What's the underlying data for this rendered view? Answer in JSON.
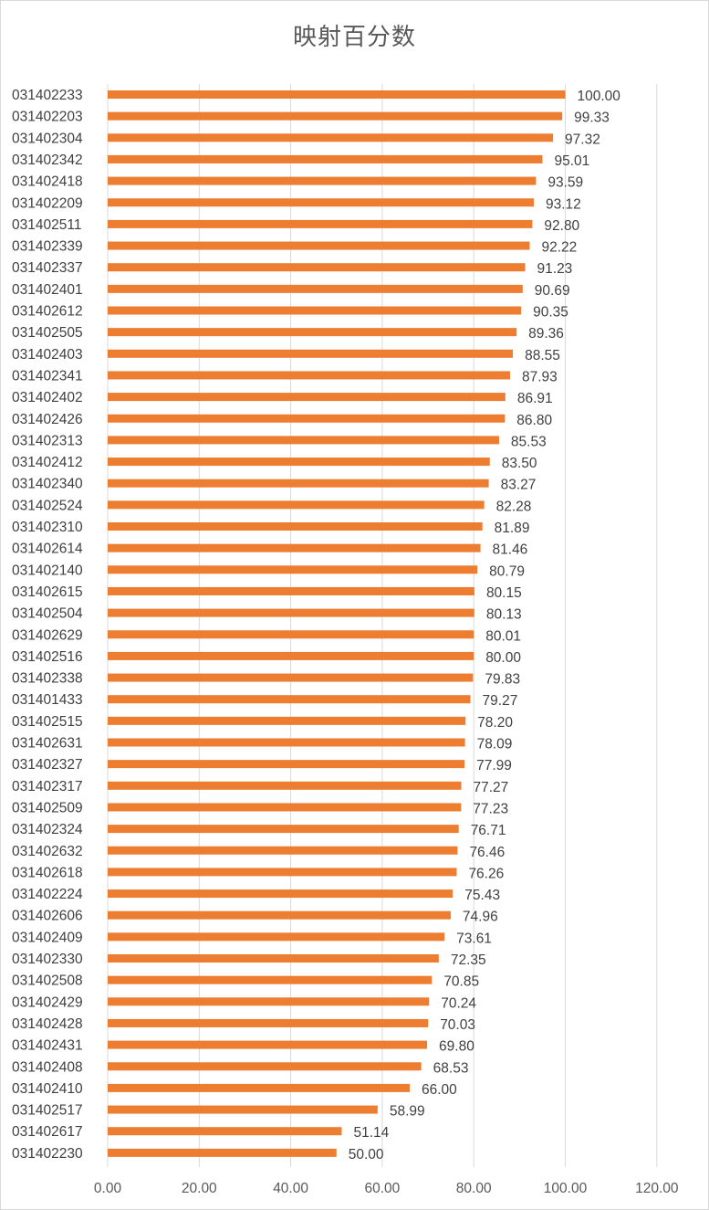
{
  "chart_data": {
    "type": "bar",
    "orientation": "horizontal",
    "title": "映射百分数",
    "xlabel": "",
    "ylabel": "",
    "xlim": [
      0,
      120
    ],
    "x_ticks": [
      "0.00",
      "20.00",
      "40.00",
      "60.00",
      "80.00",
      "100.00",
      "120.00"
    ],
    "grid": "vertical",
    "bar_color": "#ED7D31",
    "categories": [
      "031402233",
      "031402203",
      "031402304",
      "031402342",
      "031402418",
      "031402209",
      "031402511",
      "031402339",
      "031402337",
      "031402401",
      "031402612",
      "031402505",
      "031402403",
      "031402341",
      "031402402",
      "031402426",
      "031402313",
      "031402412",
      "031402340",
      "031402524",
      "031402310",
      "031402614",
      "031402140",
      "031402615",
      "031402504",
      "031402629",
      "031402516",
      "031402338",
      "031401433",
      "031402515",
      "031402631",
      "031402327",
      "031402317",
      "031402509",
      "031402324",
      "031402632",
      "031402618",
      "031402224",
      "031402606",
      "031402409",
      "031402330",
      "031402508",
      "031402429",
      "031402428",
      "031402431",
      "031402408",
      "031402410",
      "031402517",
      "031402617",
      "031402230"
    ],
    "values": [
      100.0,
      99.33,
      97.32,
      95.01,
      93.59,
      93.12,
      92.8,
      92.22,
      91.23,
      90.69,
      90.35,
      89.36,
      88.55,
      87.93,
      86.91,
      86.8,
      85.53,
      83.5,
      83.27,
      82.28,
      81.89,
      81.46,
      80.79,
      80.15,
      80.13,
      80.01,
      80.0,
      79.83,
      79.27,
      78.2,
      78.09,
      77.99,
      77.27,
      77.23,
      76.71,
      76.46,
      76.26,
      75.43,
      74.96,
      73.61,
      72.35,
      70.85,
      70.24,
      70.03,
      69.8,
      68.53,
      66.0,
      58.99,
      51.14,
      50.0
    ],
    "value_labels": [
      "100.00",
      "99.33",
      "97.32",
      "95.01",
      "93.59",
      "93.12",
      "92.80",
      "92.22",
      "91.23",
      "90.69",
      "90.35",
      "89.36",
      "88.55",
      "87.93",
      "86.91",
      "86.80",
      "85.53",
      "83.50",
      "83.27",
      "82.28",
      "81.89",
      "81.46",
      "80.79",
      "80.15",
      "80.13",
      "80.01",
      "80.00",
      "79.83",
      "79.27",
      "78.20",
      "78.09",
      "77.99",
      "77.27",
      "77.23",
      "76.71",
      "76.46",
      "76.26",
      "75.43",
      "74.96",
      "73.61",
      "72.35",
      "70.85",
      "70.24",
      "70.03",
      "69.80",
      "68.53",
      "66.00",
      "58.99",
      "51.14",
      "50.00"
    ]
  }
}
